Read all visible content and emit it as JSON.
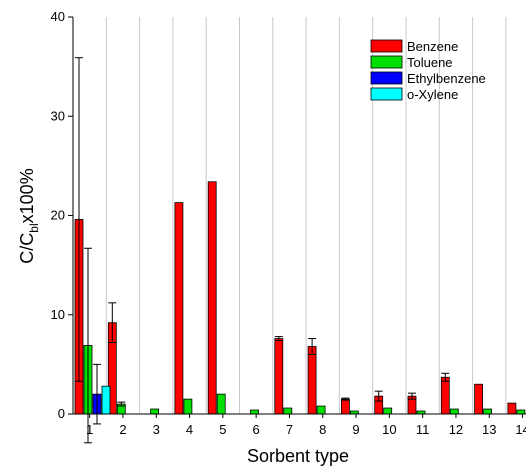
{
  "chart_data": {
    "type": "bar",
    "xlabel": "Sorbent type",
    "ylabel_main": "C/C",
    "ylabel_sub": "bl",
    "ylabel_tail": "x100%",
    "ylim": [
      0,
      40
    ],
    "yticks": [
      0,
      10,
      20,
      30,
      40
    ],
    "categories": [
      "1",
      "2",
      "3",
      "4",
      "5",
      "6",
      "7",
      "8",
      "9",
      "10",
      "11",
      "12",
      "13",
      "14"
    ],
    "grid": "vertical lines between categories",
    "legend_position": "top-right",
    "series": [
      {
        "name": "Benzene",
        "color": "#ff0000",
        "values": [
          19.6,
          9.2,
          0,
          21.3,
          23.4,
          0,
          7.6,
          6.8,
          1.5,
          1.8,
          1.8,
          3.7,
          3.0,
          1.1
        ],
        "errors": [
          16.3,
          2.0,
          0,
          0,
          0,
          0,
          0.2,
          0.8,
          0.1,
          0.5,
          0.3,
          0.4,
          0,
          0
        ]
      },
      {
        "name": "Toluene",
        "color": "#00e000",
        "values": [
          6.9,
          1.0,
          0.5,
          1.5,
          2.0,
          0.4,
          0.6,
          0.8,
          0.3,
          0.6,
          0.3,
          0.5,
          0.5,
          0.4
        ],
        "errors": [
          9.8,
          0.2,
          0,
          0,
          0,
          0,
          0,
          0,
          0,
          0,
          0,
          0,
          0,
          0
        ]
      },
      {
        "name": "Ethylbenzene",
        "color": "#0000ff",
        "values": [
          2.0,
          0,
          0,
          0,
          0,
          0,
          0,
          0,
          0,
          0,
          0,
          0,
          0,
          0
        ],
        "errors": [
          3.0,
          0,
          0,
          0,
          0,
          0,
          0,
          0,
          0,
          0,
          0,
          0,
          0,
          0
        ]
      },
      {
        "name": "o-Xylene",
        "color": "#00ffff",
        "values": [
          2.8,
          0,
          0,
          0,
          0,
          0,
          0,
          0,
          0,
          0,
          0,
          0,
          0,
          0
        ],
        "errors": [
          0,
          0,
          0,
          0,
          0,
          0,
          0,
          0,
          0,
          0,
          0,
          0,
          0,
          0
        ]
      }
    ]
  }
}
